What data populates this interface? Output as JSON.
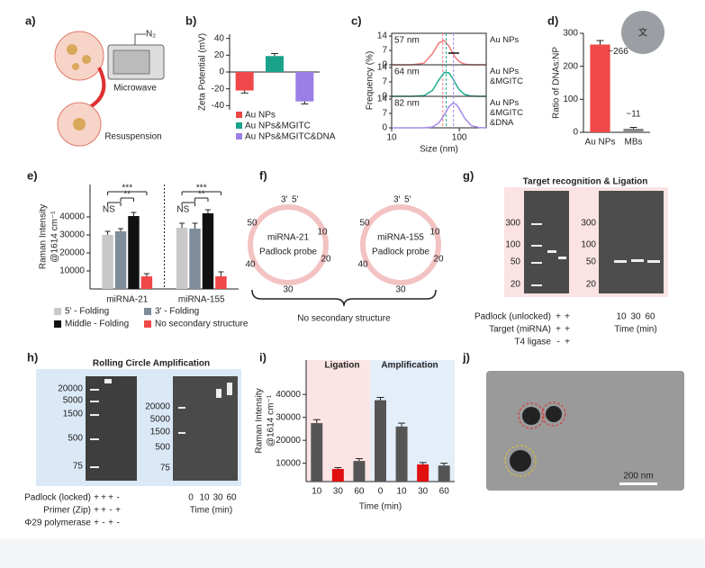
{
  "toolbar": {
    "translate": "文"
  },
  "panel_labels": [
    "a)",
    "b)",
    "c)",
    "d)",
    "e)",
    "f)",
    "g)",
    "h)",
    "i)",
    "j)"
  ],
  "panel_a": {
    "gas": "N₂",
    "labels": [
      "Microwave",
      "Resuspension"
    ]
  },
  "chart_data": [
    {
      "type": "bar",
      "ylabel": "Zeta Potential (mV)",
      "categories": [
        "Au NPs",
        "Au NPs&MGITC",
        "Au NPs&MGITC&DNA"
      ],
      "values": [
        -22,
        19,
        -35
      ],
      "errors": [
        3,
        3,
        3
      ],
      "colors": [
        "#f0484a",
        "#1aa38a",
        "#9b7fe6"
      ],
      "ylim": [
        -45,
        45
      ],
      "yticks": [
        -40,
        -20,
        0,
        20,
        40
      ],
      "legend": "bottom"
    },
    {
      "type": "line",
      "xlabel": "Size (nm)",
      "ylabel": "Frequency (%)",
      "xscale": "log",
      "x": [
        10,
        20,
        30,
        40,
        50,
        60,
        70,
        80,
        90,
        100,
        120,
        150,
        200,
        250
      ],
      "xlim": [
        10,
        250
      ],
      "xticks": [
        10,
        100
      ],
      "ylim": [
        0,
        14
      ],
      "yticks": [
        0,
        7,
        14
      ],
      "series": [
        {
          "name": "Au NPs",
          "color": "#f07a7a",
          "values": [
            0,
            0,
            0.8,
            5.3,
            10.7,
            11.8,
            9.1,
            5.7,
            3.1,
            1.5,
            0.3,
            0,
            0,
            0
          ],
          "peak": 57,
          "peak_label": "57 nm"
        },
        {
          "name": "Au NPs &MGITC",
          "color": "#1fae92",
          "values": [
            0,
            0,
            0.3,
            2.8,
            8.0,
            11.6,
            11.4,
            8.7,
            5.6,
            3.2,
            0.9,
            0.1,
            0,
            0
          ],
          "peak": 64,
          "peak_label": "64 nm"
        },
        {
          "name": "Au NPs &MGITC &DNA",
          "color": "#a48ae8",
          "values": [
            0,
            0,
            0,
            0.4,
            2.4,
            6.3,
            10.2,
            12,
            11.4,
            9.3,
            4.7,
            1.1,
            0.1,
            0
          ],
          "peak": 82,
          "peak_label": "82 nm"
        }
      ]
    },
    {
      "type": "bar",
      "ylabel": "Ratio of DNAs:NP",
      "categories": [
        "Au NPs",
        "MBs"
      ],
      "values": [
        266,
        11
      ],
      "errors": [
        12,
        4
      ],
      "value_labels": [
        "~266",
        "~11"
      ],
      "colors": [
        "#f04848",
        "#8a8a8a"
      ],
      "ylim": [
        0,
        300
      ],
      "yticks": [
        0,
        100,
        200,
        300
      ]
    },
    {
      "type": "bar",
      "ylabel": [
        "Raman Intensity",
        "@1614 cm⁻¹"
      ],
      "categories": [
        "miRNA-21",
        "miRNA-155"
      ],
      "ylim": [
        0,
        58000
      ],
      "yticks": [
        10000,
        20000,
        30000,
        40000
      ],
      "annotations": [
        "NS",
        "**",
        "***"
      ],
      "series": [
        {
          "name": "5' - Folding",
          "color": "#c8c8c8",
          "values": [
            30000,
            34000
          ],
          "errors": [
            2000,
            2500
          ]
        },
        {
          "name": "3' - Folding",
          "color": "#7f8c99",
          "values": [
            32000,
            33500
          ],
          "errors": [
            1500,
            3000
          ]
        },
        {
          "name": "Middle - Folding",
          "color": "#111111",
          "values": [
            40500,
            42000
          ],
          "errors": [
            2000,
            2000
          ]
        },
        {
          "name": "No secondary structure",
          "color": "#f04848",
          "values": [
            7000,
            7000
          ],
          "errors": [
            1500,
            2500
          ]
        }
      ]
    },
    {
      "type": "bar",
      "ylabel": [
        "Raman Intensity",
        "@1614 cm⁻¹"
      ],
      "xlabel": "Time (min)",
      "sections": [
        "Ligation",
        "Amplification"
      ],
      "categories": [
        "10",
        "30",
        "60",
        "0",
        "10",
        "30",
        "60"
      ],
      "values": [
        27500,
        7500,
        11000,
        37500,
        26000,
        9500,
        9000
      ],
      "errors": [
        1500,
        600,
        1000,
        1200,
        1500,
        800,
        1000
      ],
      "colors": [
        "#555555",
        "#e01010",
        "#555555",
        "#555555",
        "#555555",
        "#e01010",
        "#555555"
      ],
      "ylim": [
        2000,
        55000
      ],
      "yticks": [
        10000,
        20000,
        30000,
        40000
      ]
    }
  ],
  "panel_f": {
    "probes": [
      {
        "line1": "miRNA-21",
        "line2": "Padlock probe"
      },
      {
        "line1": "miRNA-155",
        "line2": "Padlock probe"
      }
    ],
    "ends": [
      "3'",
      "5'"
    ],
    "positions": [
      "10",
      "20",
      "30",
      "40",
      "50"
    ],
    "caption": "No secondary structure"
  },
  "panel_g": {
    "title": "Target recognition & Ligation",
    "ladder": [
      "300",
      "100",
      "50",
      "20"
    ],
    "rows": [
      {
        "label": "Padlock (unlocked)",
        "signs": [
          "+",
          "+"
        ]
      },
      {
        "label": "Target (miRNA)",
        "signs": [
          "+",
          "+"
        ]
      },
      {
        "label": "T4 ligase",
        "signs": [
          "-",
          "+"
        ]
      }
    ],
    "times": [
      "10",
      "30",
      "60"
    ],
    "time_label": "Time (min)"
  },
  "panel_h": {
    "title": "Rolling Circle Amplification",
    "ladder": [
      "20000",
      "5000",
      "1500",
      "500",
      "75"
    ],
    "rows": [
      {
        "label": "Padlock (locked)",
        "signs": [
          "+",
          "+",
          "+",
          "-"
        ]
      },
      {
        "label": "Primer (Zip)",
        "signs": [
          "+",
          "+",
          "-",
          "+"
        ]
      },
      {
        "label": "Φ29 polymerase",
        "signs": [
          "+",
          "-",
          "+",
          "-"
        ]
      }
    ],
    "times": [
      "0",
      "10",
      "30",
      "60"
    ],
    "time_label": "Time (min)"
  },
  "panel_j": {
    "scale_bar": "200 nm"
  }
}
